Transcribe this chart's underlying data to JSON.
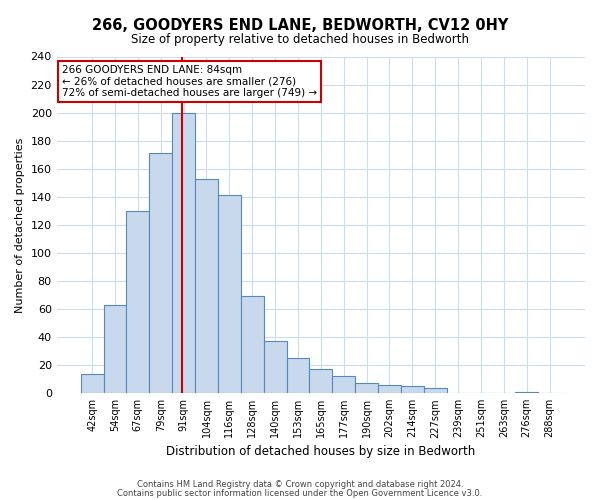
{
  "title": "266, GOODYERS END LANE, BEDWORTH, CV12 0HY",
  "subtitle": "Size of property relative to detached houses in Bedworth",
  "xlabel": "Distribution of detached houses by size in Bedworth",
  "ylabel": "Number of detached properties",
  "bar_labels": [
    "42sqm",
    "54sqm",
    "67sqm",
    "79sqm",
    "91sqm",
    "104sqm",
    "116sqm",
    "128sqm",
    "140sqm",
    "153sqm",
    "165sqm",
    "177sqm",
    "190sqm",
    "202sqm",
    "214sqm",
    "227sqm",
    "239sqm",
    "251sqm",
    "263sqm",
    "276sqm",
    "288sqm"
  ],
  "bar_values": [
    14,
    63,
    130,
    171,
    200,
    153,
    141,
    69,
    37,
    25,
    17,
    12,
    7,
    6,
    5,
    4,
    0,
    0,
    0,
    1,
    0
  ],
  "bar_color": "#c9d9ed",
  "bar_edge_color": "#5588bb",
  "property_line_color": "#cc0000",
  "ylim": [
    0,
    240
  ],
  "yticks": [
    0,
    20,
    40,
    60,
    80,
    100,
    120,
    140,
    160,
    180,
    200,
    220,
    240
  ],
  "annotation_line1": "266 GOODYERS END LANE: 84sqm",
  "annotation_line2": "← 26% of detached houses are smaller (276)",
  "annotation_line3": "72% of semi-detached houses are larger (749) →",
  "annotation_box_edge": "#cc0000",
  "footer_line1": "Contains HM Land Registry data © Crown copyright and database right 2024.",
  "footer_line2": "Contains public sector information licensed under the Open Government Licence v3.0.",
  "background_color": "#ffffff",
  "grid_color": "#ccddee"
}
